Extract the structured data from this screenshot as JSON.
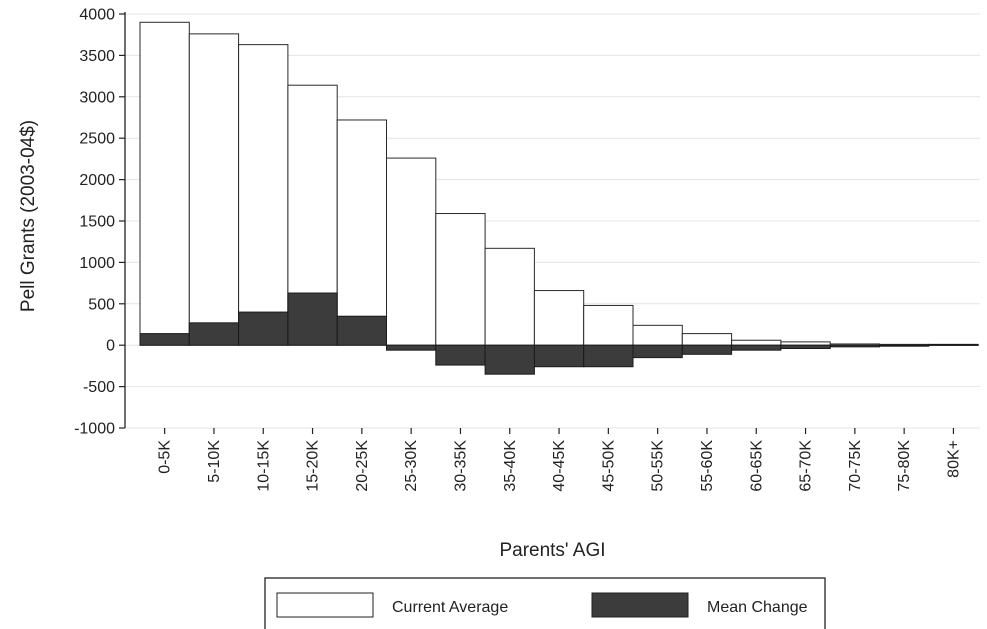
{
  "chart_data": {
    "type": "bar",
    "categories": [
      "0-5K",
      "5-10K",
      "10-15K",
      "15-20K",
      "20-25K",
      "25-30K",
      "30-35K",
      "35-40K",
      "40-45K",
      "45-50K",
      "50-55K",
      "55-60K",
      "60-65K",
      "65-70K",
      "70-75K",
      "75-80K",
      "80K+"
    ],
    "series": [
      {
        "name": "Current Average",
        "color": "#ffffff",
        "values": [
          3900,
          3760,
          3630,
          3140,
          2720,
          2260,
          1590,
          1170,
          660,
          480,
          240,
          140,
          60,
          40,
          15,
          10,
          5
        ]
      },
      {
        "name": "Mean Change",
        "color": "#3c3c3c",
        "values": [
          140,
          270,
          400,
          630,
          350,
          -60,
          -240,
          -350,
          -260,
          -260,
          -150,
          -110,
          -60,
          -40,
          -20,
          -10,
          10
        ]
      }
    ],
    "xlabel": "Parents' AGI",
    "ylabel": "Pell Grants (2003-04$)",
    "ylim": [
      -1000,
      4000
    ],
    "yticks": [
      -1000,
      -500,
      0,
      500,
      1000,
      1500,
      2000,
      2500,
      3000,
      3500,
      4000
    ],
    "grid": true,
    "legend_position": "bottom"
  }
}
